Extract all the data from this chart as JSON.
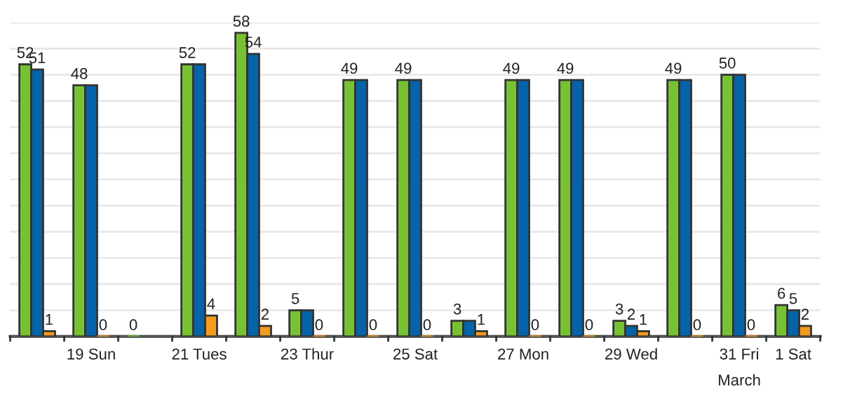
{
  "chart_data": {
    "type": "bar",
    "categories": [
      null,
      "19 Sun",
      null,
      "21 Tues",
      null,
      "23 Thur",
      null,
      "25 Sat",
      null,
      "27 Mon",
      null,
      "29 Wed",
      null,
      "31 Fri",
      "1 Sat"
    ],
    "series": [
      {
        "color": "#77c232",
        "values": [
          52,
          48,
          0,
          52,
          58,
          5,
          49,
          49,
          3,
          49,
          49,
          3,
          49,
          50,
          6
        ],
        "value_labels": [
          "52",
          "48",
          "0",
          "52",
          "58",
          "5",
          "49",
          "49",
          "3",
          "49",
          "49",
          "3",
          "49",
          "50",
          "6"
        ]
      },
      {
        "color": "#0563a9",
        "values": [
          51,
          48,
          null,
          52,
          54,
          5,
          49,
          49,
          3,
          49,
          49,
          2,
          49,
          50,
          5
        ],
        "value_labels": [
          "51",
          null,
          null,
          null,
          "54",
          null,
          null,
          null,
          null,
          null,
          null,
          "2",
          null,
          null,
          "5"
        ]
      },
      {
        "color": "#f39c1e",
        "values": [
          1,
          0,
          null,
          4,
          2,
          0,
          0,
          0,
          1,
          0,
          0,
          1,
          0,
          0,
          2
        ],
        "value_labels": [
          "1",
          "0",
          null,
          "4",
          "2",
          "0",
          "0",
          "0",
          "1",
          "0",
          "0",
          "1",
          "0",
          "0",
          "2"
        ]
      }
    ],
    "ylim": [
      0,
      60
    ],
    "yticks": [
      {
        "value": 5,
        "label": null
      },
      {
        "value": 10,
        "label": null
      },
      {
        "value": 15,
        "label": null
      },
      {
        "value": 20,
        "label": null
      },
      {
        "value": 25,
        "label": null
      },
      {
        "value": 30,
        "label": null
      },
      {
        "value": 35,
        "label": null
      },
      {
        "value": 40,
        "label": null
      },
      {
        "value": 45,
        "label": null
      },
      {
        "value": 50,
        "label": null
      },
      {
        "value": 55,
        "label": null
      },
      {
        "value": 60,
        "label": null
      }
    ],
    "grid": "y",
    "tick_labels": "x",
    "annotations": [
      "March"
    ]
  }
}
